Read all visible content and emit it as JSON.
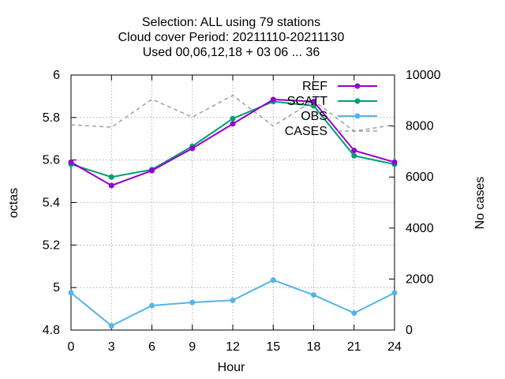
{
  "chart_data": {
    "type": "line",
    "title_lines": [
      "Selection: ALL using    79 stations",
      "Cloud cover   Period: 20211110-20211130",
      "Used  00,06,12,18 + 03 06 ... 36"
    ],
    "xlabel": "Hour",
    "ylabel": "octas",
    "y2label": "No cases",
    "x": [
      0,
      3,
      6,
      9,
      12,
      15,
      18,
      21,
      24
    ],
    "xticks": [
      "0",
      "3",
      "6",
      "9",
      "12",
      "15",
      "18",
      "21",
      "24"
    ],
    "ylim": [
      4.8,
      6.0
    ],
    "yticks": [
      "4.8",
      "5",
      "5.2",
      "5.4",
      "5.6",
      "5.8",
      "6"
    ],
    "y2lim": [
      0,
      10000
    ],
    "y2ticks": [
      "0",
      "2000",
      "4000",
      "6000",
      "8000",
      "10000"
    ],
    "grid": true,
    "legend_position": "top-right",
    "series": [
      {
        "name": "REF",
        "axis": "y",
        "color": "#9400d3",
        "style": "solid-points",
        "values": [
          5.59,
          5.48,
          5.55,
          5.655,
          5.77,
          5.885,
          5.875,
          5.645,
          5.59
        ]
      },
      {
        "name": "SCATT",
        "axis": "y",
        "color": "#009e73",
        "style": "solid-points",
        "values": [
          5.58,
          5.52,
          5.555,
          5.665,
          5.795,
          5.875,
          5.855,
          5.62,
          5.58
        ]
      },
      {
        "name": "OBS",
        "axis": "y",
        "color": "#56b4e9",
        "style": "solid-points",
        "values": [
          4.975,
          4.82,
          4.915,
          4.93,
          4.94,
          5.035,
          4.965,
          4.88,
          4.975
        ]
      },
      {
        "name": "CASES",
        "axis": "y2",
        "color": "#a0a0a0",
        "style": "dashed",
        "values": [
          8050,
          7950,
          9050,
          8350,
          9200,
          8000,
          9000,
          7800,
          8050
        ]
      }
    ]
  }
}
